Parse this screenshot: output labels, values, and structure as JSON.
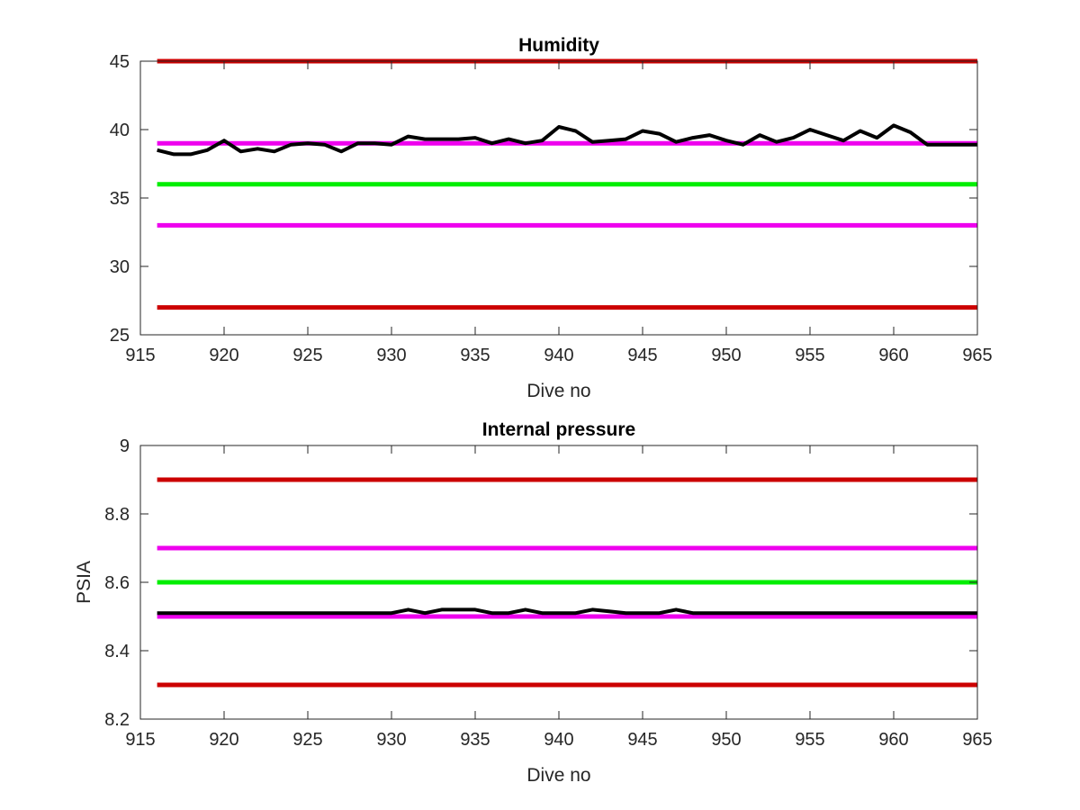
{
  "chart_data": [
    {
      "type": "line",
      "title": "Humidity",
      "xlabel": "Dive no",
      "ylabel": "",
      "xlim": [
        915,
        965
      ],
      "ylim": [
        25,
        45
      ],
      "xticks": [
        "915",
        "920",
        "925",
        "930",
        "935",
        "940",
        "945",
        "950",
        "955",
        "960",
        "965"
      ],
      "yticks": [
        "25",
        "30",
        "35",
        "40",
        "45"
      ],
      "grid": false,
      "series": [
        {
          "color": "#000000",
          "x": [
            916,
            917,
            918,
            919,
            920,
            921,
            922,
            923,
            924,
            925,
            926,
            927,
            928,
            929,
            930,
            931,
            932,
            933,
            934,
            935,
            936,
            937,
            938,
            939,
            940,
            941,
            942,
            943,
            944,
            945,
            946,
            947,
            948,
            949,
            950,
            951,
            952,
            953,
            954,
            955,
            956,
            957,
            958,
            959,
            960,
            961,
            962,
            963,
            964,
            965
          ],
          "y": [
            38.5,
            38.2,
            38.2,
            38.5,
            39.2,
            38.4,
            38.6,
            38.4,
            38.9,
            39.0,
            38.9,
            38.4,
            39.0,
            39.0,
            38.9,
            39.5,
            39.3,
            39.3,
            39.3,
            39.4,
            39.0,
            39.3,
            39.0,
            39.2,
            40.2,
            39.9,
            39.1,
            39.2,
            39.3,
            39.9,
            39.7,
            39.1,
            39.4,
            39.6,
            39.2,
            38.9,
            39.6,
            39.1,
            39.4,
            40.0,
            39.6,
            39.2,
            39.9,
            39.4,
            40.3,
            39.8,
            38.9,
            38.9,
            38.9,
            38.9
          ]
        },
        {
          "color": "#CC0000",
          "x": [
            916,
            965
          ],
          "y": [
            45,
            45
          ]
        },
        {
          "color": "#EE00EE",
          "x": [
            916,
            965
          ],
          "y": [
            39,
            39
          ]
        },
        {
          "color": "#00EE00",
          "x": [
            916,
            965
          ],
          "y": [
            36,
            36
          ]
        },
        {
          "color": "#EE00EE",
          "x": [
            916,
            965
          ],
          "y": [
            33,
            33
          ]
        },
        {
          "color": "#CC0000",
          "x": [
            916,
            965
          ],
          "y": [
            27,
            27
          ]
        }
      ]
    },
    {
      "type": "line",
      "title": "Internal pressure",
      "xlabel": "Dive no",
      "ylabel": "PSIA",
      "xlim": [
        915,
        965
      ],
      "ylim": [
        8.2,
        9
      ],
      "xticks": [
        "915",
        "920",
        "925",
        "930",
        "935",
        "940",
        "945",
        "950",
        "955",
        "960",
        "965"
      ],
      "yticks": [
        "8.2",
        "8.4",
        "8.6",
        "8.8",
        "9"
      ],
      "grid": false,
      "series": [
        {
          "color": "#000000",
          "x": [
            916,
            917,
            918,
            919,
            920,
            921,
            922,
            923,
            924,
            925,
            926,
            927,
            928,
            929,
            930,
            931,
            932,
            933,
            934,
            935,
            936,
            937,
            938,
            939,
            940,
            941,
            942,
            943,
            944,
            945,
            946,
            947,
            948,
            949,
            950,
            951,
            952,
            953,
            954,
            955,
            956,
            957,
            958,
            959,
            960,
            961,
            962,
            963,
            964,
            965
          ],
          "y": [
            8.51,
            8.51,
            8.51,
            8.51,
            8.51,
            8.51,
            8.51,
            8.51,
            8.51,
            8.51,
            8.51,
            8.51,
            8.51,
            8.51,
            8.51,
            8.52,
            8.51,
            8.52,
            8.52,
            8.52,
            8.51,
            8.51,
            8.52,
            8.51,
            8.51,
            8.51,
            8.52,
            8.515,
            8.51,
            8.51,
            8.51,
            8.52,
            8.51,
            8.51,
            8.51,
            8.51,
            8.51,
            8.51,
            8.51,
            8.51,
            8.51,
            8.51,
            8.51,
            8.51,
            8.51,
            8.51,
            8.51,
            8.51,
            8.51,
            8.51
          ]
        },
        {
          "color": "#CC0000",
          "x": [
            916,
            965
          ],
          "y": [
            8.9,
            8.9
          ]
        },
        {
          "color": "#EE00EE",
          "x": [
            916,
            965
          ],
          "y": [
            8.7,
            8.7
          ]
        },
        {
          "color": "#00EE00",
          "x": [
            916,
            965
          ],
          "y": [
            8.6,
            8.6
          ]
        },
        {
          "color": "#EE00EE",
          "x": [
            916,
            965
          ],
          "y": [
            8.5,
            8.5
          ]
        },
        {
          "color": "#CC0000",
          "x": [
            916,
            965
          ],
          "y": [
            8.3,
            8.3
          ]
        }
      ]
    }
  ]
}
